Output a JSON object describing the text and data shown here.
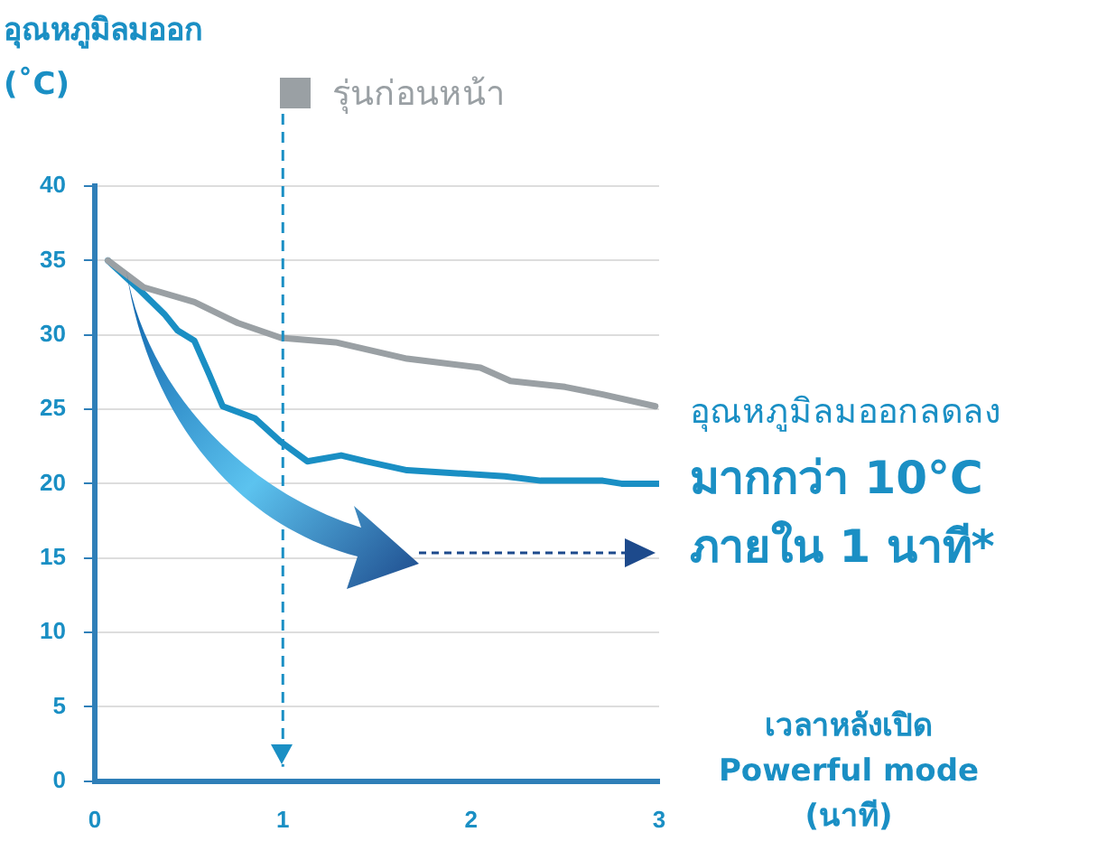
{
  "chart_data": {
    "type": "line",
    "ylabel": "อุณหภูมิลมออก (˚C)",
    "xlabel": "เวลาหลังเปิด Powerful mode (นาที)",
    "xlim": [
      0,
      3
    ],
    "xticks": [
      0,
      1,
      2,
      3
    ],
    "ylim": [
      0,
      40
    ],
    "yticks": [
      0,
      5,
      10,
      15,
      20,
      25,
      30,
      35,
      40
    ],
    "grid": "y",
    "legend": "top",
    "marker": "none",
    "line_style": "solid",
    "series": [
      {
        "name": "รุ่นก่อนหน้า",
        "color": "#9aa0a4",
        "x": [
          0.07,
          0.26,
          0.53,
          0.76,
          0.99,
          1.28,
          1.66,
          2.05,
          2.21,
          2.5,
          2.7,
          2.98
        ],
        "values": [
          35,
          33.2,
          32.2,
          30.8,
          29.8,
          29.5,
          28.4,
          27.8,
          26.9,
          26.5,
          26.0,
          25.2
        ]
      },
      {
        "color": "#1a8fc4",
        "x": [
          0.07,
          0.24,
          0.37,
          0.44,
          0.53,
          0.61,
          0.68,
          0.85,
          0.99,
          1.13,
          1.31,
          1.44,
          1.66,
          2.18,
          2.37,
          2.7,
          2.8,
          3.0
        ],
        "values": [
          35,
          33.0,
          31.4,
          30.3,
          29.6,
          27.3,
          25.2,
          24.4,
          22.8,
          21.5,
          21.9,
          21.5,
          20.9,
          20.5,
          20.2,
          20.2,
          20.0,
          20.0
        ]
      }
    ],
    "ref_lines": [
      {
        "axis": "x",
        "value": 1,
        "color": "#1a8fc4",
        "line_style": "dashed"
      }
    ],
    "annotations": [
      "อุณหภูมิลมออกลดลง",
      "มากกว่า 10°C",
      "ภายใน 1 นาที*"
    ]
  }
}
